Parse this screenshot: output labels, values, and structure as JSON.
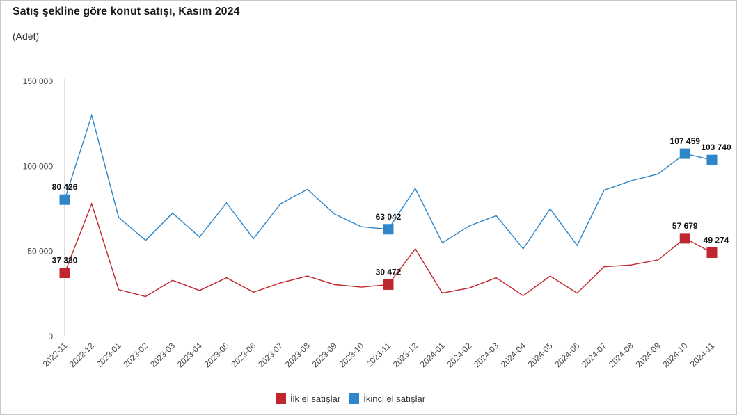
{
  "title": "Satış şekline göre konut satışı, Kasım 2024",
  "subtitle": "(Adet)",
  "chart_data": {
    "type": "line",
    "title": "Satış şekline göre konut satışı, Kasım 2024",
    "ylabel": "",
    "xlabel": "",
    "ylim": [
      0,
      150000
    ],
    "yticks": [
      "0",
      "50 000",
      "100 000",
      "150 000"
    ],
    "ytick_values": [
      0,
      50000,
      100000,
      150000
    ],
    "categories": [
      "2022-11",
      "2022-12",
      "2023-01",
      "2023-02",
      "2023-03",
      "2023-04",
      "2023-05",
      "2023-06",
      "2023-07",
      "2023-08",
      "2023-09",
      "2023-10",
      "2023-11",
      "2023-12",
      "2024-01",
      "2024-02",
      "2024-03",
      "2024-04",
      "2024-05",
      "2024-06",
      "2024-07",
      "2024-08",
      "2024-09",
      "2024-10",
      "2024-11"
    ],
    "grid": false,
    "legend_position": "bottom",
    "series": [
      {
        "name": "İlk el satışlar",
        "color": "#c0262d",
        "values": [
          37380,
          78000,
          27500,
          23500,
          33000,
          27000,
          34500,
          26000,
          31500,
          35500,
          30500,
          29000,
          30472,
          51500,
          25500,
          28500,
          34500,
          24000,
          35500,
          25500,
          41000,
          42000,
          45000,
          57679,
          49274
        ],
        "labels": [
          {
            "index": 0,
            "text": "37 380"
          },
          {
            "index": 12,
            "text": "30 472"
          },
          {
            "index": 23,
            "text": "57 679"
          },
          {
            "index": 24,
            "text": "49 274"
          }
        ]
      },
      {
        "name": "İkinci el satışlar",
        "color": "#2e86c9",
        "values": [
          80426,
          130000,
          70000,
          56500,
          72500,
          58500,
          78500,
          57500,
          78000,
          86500,
          72000,
          64500,
          63042,
          87000,
          55000,
          65000,
          71000,
          51500,
          75000,
          53500,
          86000,
          91500,
          95500,
          107459,
          103740
        ],
        "labels": [
          {
            "index": 0,
            "text": "80 426"
          },
          {
            "index": 12,
            "text": "63 042"
          },
          {
            "index": 23,
            "text": "107 459"
          },
          {
            "index": 24,
            "text": "103 740"
          }
        ]
      }
    ]
  },
  "legend": {
    "item1": "İlk el satışlar",
    "item2": "İkinci el satışlar"
  }
}
